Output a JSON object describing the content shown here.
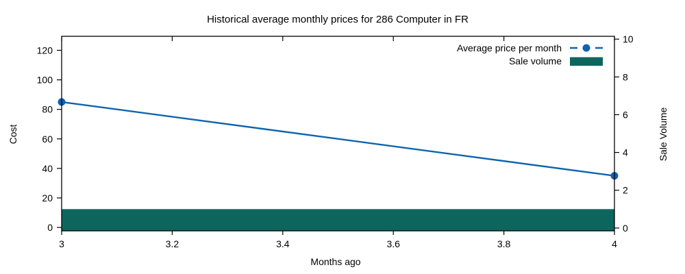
{
  "chart_data": {
    "type": "combo-line-bar",
    "title": "Historical average monthly prices for 286 Computer in FR",
    "xlabel": "Months ago",
    "background_color": "#ffffff",
    "text_color": "#000000",
    "grid": false,
    "legend_position": "top-right-inside",
    "x_axis": {
      "range": [
        3,
        4
      ],
      "tick_values": [
        3,
        3.2,
        3.4,
        3.6,
        3.8,
        4
      ],
      "tick_labels": [
        "3",
        "3.2",
        "3.4",
        "3.6",
        "3.8",
        "4"
      ]
    },
    "left_axis": {
      "label": "Cost",
      "range": [
        -2.3,
        129.5
      ],
      "tick_values": [
        0,
        20,
        40,
        60,
        80,
        100,
        120
      ],
      "tick_labels": [
        "0",
        "20",
        "40",
        "60",
        "80",
        "100",
        "120"
      ]
    },
    "right_axis": {
      "label": "Sale Volume",
      "range": [
        -0.15,
        10.15
      ],
      "tick_values": [
        0,
        2,
        4,
        6,
        8,
        10
      ],
      "tick_labels": [
        "0",
        "2",
        "4",
        "6",
        "8",
        "10"
      ]
    },
    "series": [
      {
        "name": "Average price per month",
        "kind": "line",
        "axis": "left",
        "x": [
          3,
          4
        ],
        "y": [
          85,
          35
        ],
        "color": "#0f63ae",
        "marker": "filled-circle",
        "legend_sample": "dash-dot-dash"
      },
      {
        "name": "Sale volume",
        "kind": "bar",
        "axis": "right",
        "x": [
          3,
          4
        ],
        "y": [
          1,
          1
        ],
        "color": "#0c665e",
        "legend_sample": "filled-rect"
      }
    ]
  }
}
